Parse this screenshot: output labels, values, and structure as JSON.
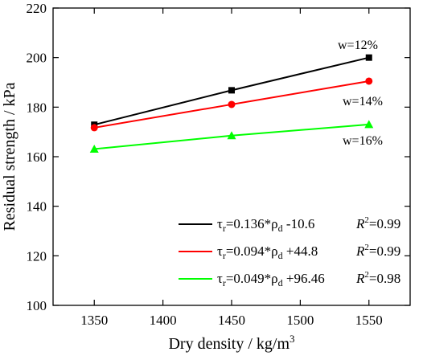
{
  "chart_data": {
    "type": "line",
    "title": "",
    "xlabel": "Dry density / kg/m",
    "xlabel_sup": "3",
    "ylabel": "Residual strength / kPa",
    "xlim": [
      1320,
      1580
    ],
    "ylim": [
      100,
      220
    ],
    "xticks": [
      1350,
      1400,
      1450,
      1500,
      1550
    ],
    "yticks": [
      100,
      120,
      140,
      160,
      180,
      200,
      220
    ],
    "xtick_labels": [
      "1350",
      "1400",
      "1450",
      "1500",
      "1550"
    ],
    "ytick_labels": [
      "100",
      "120",
      "140",
      "160",
      "180",
      "200",
      "220"
    ],
    "grid": false,
    "legend_position": "bottom-right",
    "x": [
      1350,
      1450,
      1550
    ],
    "series": [
      {
        "name": "w=12%",
        "values": [
          172.9,
          186.8,
          200.0
        ],
        "color": "#000000",
        "marker": "square",
        "legend_main": "τ",
        "legend_sub": "r",
        "legend_mid": "=0.136*ρ",
        "legend_sub2": "d",
        "legend_tail": " -10.6",
        "r2_label": "R",
        "r2_sup": "2",
        "r2_value": "=0.99"
      },
      {
        "name": "w=14%",
        "values": [
          171.7,
          181.1,
          190.5
        ],
        "color": "#ff0000",
        "marker": "circle",
        "legend_main": "τ",
        "legend_sub": "r",
        "legend_mid": "=0.094*ρ",
        "legend_sub2": "d",
        "legend_tail": " +44.8",
        "r2_label": "R",
        "r2_sup": "2",
        "r2_value": "=0.99"
      },
      {
        "name": "w=16%",
        "values": [
          163.1,
          168.5,
          173.0
        ],
        "color": "#00ff00",
        "marker": "triangle",
        "legend_main": "τ",
        "legend_sub": "r",
        "legend_mid": "=0.049*ρ",
        "legend_sub2": "d",
        "legend_tail": " +96.46",
        "r2_label": "R",
        "r2_sup": "2",
        "r2_value": "=0.98"
      }
    ],
    "annotations": [
      "w=12%",
      "w=14%",
      "w=16%"
    ]
  }
}
